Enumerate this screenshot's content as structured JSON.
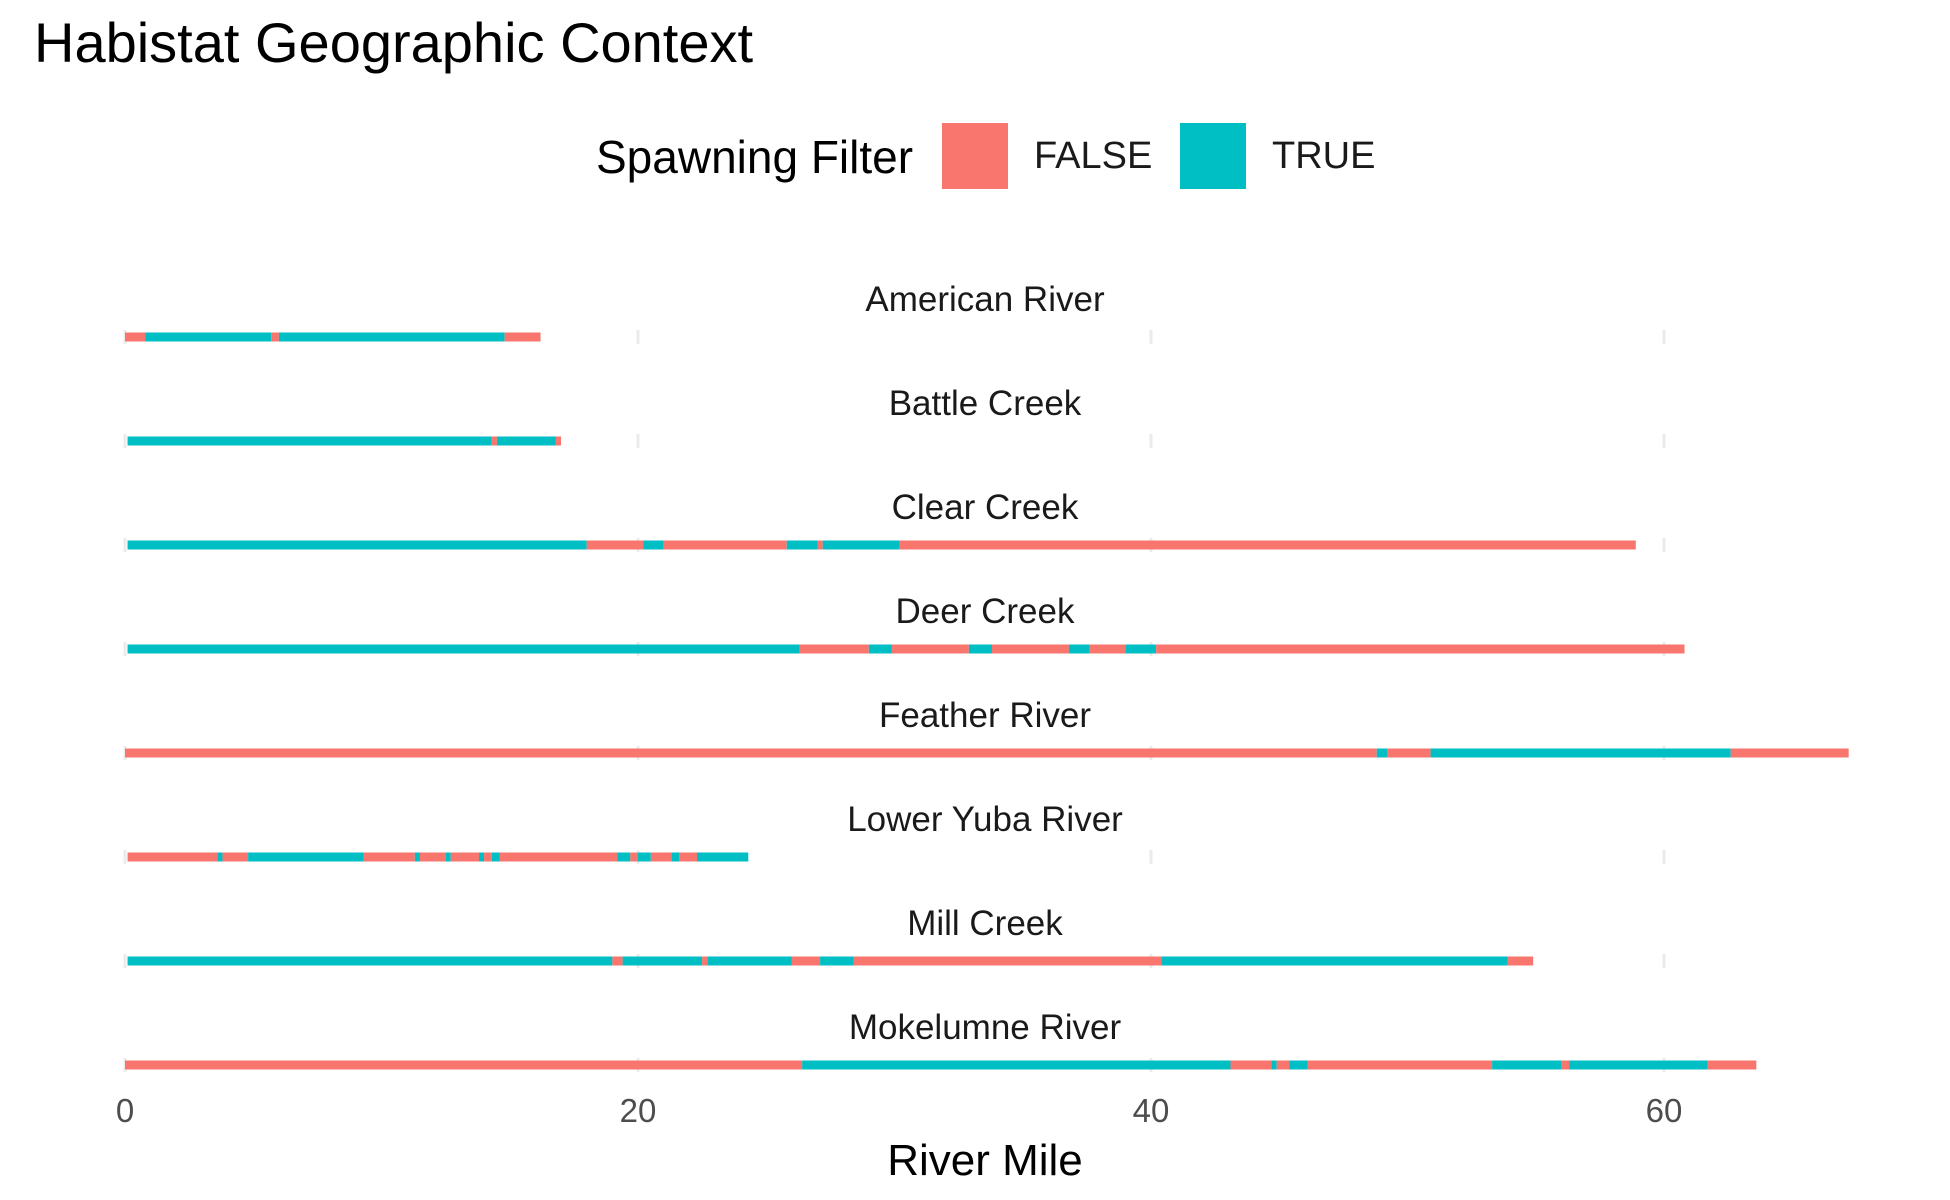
{
  "chart_data": {
    "type": "bar",
    "title": "Habistat Geographic Context",
    "xlabel": "River Mile",
    "ylabel": "",
    "xlim": [
      0,
      68
    ],
    "x_ticks": [
      0,
      20,
      40,
      60
    ],
    "grid": true,
    "legend": {
      "title": "Spawning Filter",
      "placement": "top",
      "entries": [
        {
          "label": "FALSE",
          "color": "#F8766D"
        },
        {
          "label": "TRUE",
          "color": "#00BFC4"
        }
      ]
    },
    "panels": [
      {
        "name": "American River",
        "segments": [
          {
            "start": 0,
            "end": 0.8,
            "spawning": false
          },
          {
            "start": 0.8,
            "end": 5.7,
            "spawning": true
          },
          {
            "start": 5.7,
            "end": 6.0,
            "spawning": false
          },
          {
            "start": 6.0,
            "end": 14.8,
            "spawning": true
          },
          {
            "start": 14.8,
            "end": 16.2,
            "spawning": false
          }
        ]
      },
      {
        "name": "Battle Creek",
        "segments": [
          {
            "start": 0.1,
            "end": 14.3,
            "spawning": true
          },
          {
            "start": 14.3,
            "end": 14.5,
            "spawning": false
          },
          {
            "start": 14.5,
            "end": 16.8,
            "spawning": true
          },
          {
            "start": 16.8,
            "end": 17.0,
            "spawning": false
          }
        ]
      },
      {
        "name": "Clear Creek",
        "segments": [
          {
            "start": 0.1,
            "end": 18.0,
            "spawning": true
          },
          {
            "start": 18.0,
            "end": 20.2,
            "spawning": false
          },
          {
            "start": 20.2,
            "end": 21.0,
            "spawning": true
          },
          {
            "start": 21.0,
            "end": 25.8,
            "spawning": false
          },
          {
            "start": 25.8,
            "end": 27.0,
            "spawning": true
          },
          {
            "start": 27.0,
            "end": 27.2,
            "spawning": false
          },
          {
            "start": 27.2,
            "end": 30.2,
            "spawning": true
          },
          {
            "start": 30.2,
            "end": 58.9,
            "spawning": false
          }
        ]
      },
      {
        "name": "Deer Creek",
        "segments": [
          {
            "start": 0.1,
            "end": 26.3,
            "spawning": true
          },
          {
            "start": 26.3,
            "end": 29.0,
            "spawning": false
          },
          {
            "start": 29.0,
            "end": 29.9,
            "spawning": true
          },
          {
            "start": 29.9,
            "end": 32.9,
            "spawning": false
          },
          {
            "start": 32.9,
            "end": 33.8,
            "spawning": true
          },
          {
            "start": 33.8,
            "end": 36.8,
            "spawning": false
          },
          {
            "start": 36.8,
            "end": 37.6,
            "spawning": true
          },
          {
            "start": 37.6,
            "end": 39.0,
            "spawning": false
          },
          {
            "start": 39.0,
            "end": 40.2,
            "spawning": true
          },
          {
            "start": 40.2,
            "end": 60.8,
            "spawning": false
          }
        ]
      },
      {
        "name": "Feather River",
        "segments": [
          {
            "start": 0,
            "end": 48.8,
            "spawning": false
          },
          {
            "start": 48.8,
            "end": 49.2,
            "spawning": true
          },
          {
            "start": 49.2,
            "end": 50.9,
            "spawning": false
          },
          {
            "start": 50.9,
            "end": 62.6,
            "spawning": true
          },
          {
            "start": 62.6,
            "end": 67.2,
            "spawning": false
          }
        ]
      },
      {
        "name": "Lower Yuba River",
        "segments": [
          {
            "start": 0.1,
            "end": 3.6,
            "spawning": false
          },
          {
            "start": 3.6,
            "end": 3.8,
            "spawning": true
          },
          {
            "start": 3.8,
            "end": 4.8,
            "spawning": false
          },
          {
            "start": 4.8,
            "end": 9.3,
            "spawning": true
          },
          {
            "start": 9.3,
            "end": 11.3,
            "spawning": false
          },
          {
            "start": 11.3,
            "end": 11.5,
            "spawning": true
          },
          {
            "start": 11.5,
            "end": 12.5,
            "spawning": false
          },
          {
            "start": 12.5,
            "end": 12.7,
            "spawning": true
          },
          {
            "start": 12.7,
            "end": 13.8,
            "spawning": false
          },
          {
            "start": 13.8,
            "end": 14.0,
            "spawning": true
          },
          {
            "start": 14.0,
            "end": 14.3,
            "spawning": false
          },
          {
            "start": 14.3,
            "end": 14.6,
            "spawning": true
          },
          {
            "start": 14.6,
            "end": 19.2,
            "spawning": false
          },
          {
            "start": 19.2,
            "end": 19.7,
            "spawning": true
          },
          {
            "start": 19.7,
            "end": 20.0,
            "spawning": false
          },
          {
            "start": 20.0,
            "end": 20.5,
            "spawning": true
          },
          {
            "start": 20.5,
            "end": 21.3,
            "spawning": false
          },
          {
            "start": 21.3,
            "end": 21.6,
            "spawning": true
          },
          {
            "start": 21.6,
            "end": 22.3,
            "spawning": false
          },
          {
            "start": 22.3,
            "end": 24.3,
            "spawning": true
          }
        ]
      },
      {
        "name": "Mill Creek",
        "segments": [
          {
            "start": 0.1,
            "end": 19.0,
            "spawning": true
          },
          {
            "start": 19.0,
            "end": 19.4,
            "spawning": false
          },
          {
            "start": 19.4,
            "end": 22.5,
            "spawning": true
          },
          {
            "start": 22.5,
            "end": 22.7,
            "spawning": false
          },
          {
            "start": 22.7,
            "end": 26.0,
            "spawning": true
          },
          {
            "start": 26.0,
            "end": 27.1,
            "spawning": false
          },
          {
            "start": 27.1,
            "end": 28.4,
            "spawning": true
          },
          {
            "start": 28.4,
            "end": 40.4,
            "spawning": false
          },
          {
            "start": 40.4,
            "end": 53.9,
            "spawning": true
          },
          {
            "start": 53.9,
            "end": 54.9,
            "spawning": false
          }
        ]
      },
      {
        "name": "Mokelumne River",
        "segments": [
          {
            "start": 0,
            "end": 26.4,
            "spawning": false
          },
          {
            "start": 26.4,
            "end": 43.1,
            "spawning": true
          },
          {
            "start": 43.1,
            "end": 44.7,
            "spawning": false
          },
          {
            "start": 44.7,
            "end": 44.9,
            "spawning": true
          },
          {
            "start": 44.9,
            "end": 45.4,
            "spawning": false
          },
          {
            "start": 45.4,
            "end": 46.1,
            "spawning": true
          },
          {
            "start": 46.1,
            "end": 53.3,
            "spawning": false
          },
          {
            "start": 53.3,
            "end": 56.0,
            "spawning": true
          },
          {
            "start": 56.0,
            "end": 56.3,
            "spawning": false
          },
          {
            "start": 56.3,
            "end": 61.7,
            "spawning": true
          },
          {
            "start": 61.7,
            "end": 63.6,
            "spawning": false
          }
        ]
      }
    ]
  }
}
